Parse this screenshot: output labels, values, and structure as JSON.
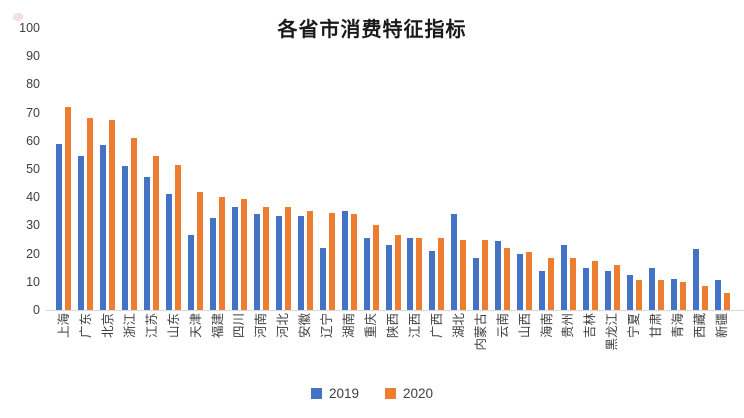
{
  "page": {
    "background": "#FFFFFF",
    "axis_line_color": "#D9D9D9",
    "label_color": "#3F3F3F"
  },
  "chart_data": {
    "type": "bar",
    "title": "各省市消费特征指标",
    "categories": [
      "上海",
      "广东",
      "北京",
      "浙江",
      "江苏",
      "山东",
      "天津",
      "福建",
      "四川",
      "河南",
      "河北",
      "安徽",
      "辽宁",
      "湖南",
      "重庆",
      "陕西",
      "江西",
      "广西",
      "湖北",
      "内蒙古",
      "云南",
      "山西",
      "海南",
      "贵州",
      "吉林",
      "黑龙江",
      "宁夏",
      "甘肃",
      "青海",
      "西藏",
      "新疆"
    ],
    "series": [
      {
        "name": "2019",
        "color": "#4472C4",
        "values": [
          59,
          54.5,
          58.5,
          51,
          47,
          41,
          26.5,
          32.5,
          36.5,
          34,
          33.5,
          33.5,
          22,
          35,
          25.5,
          23,
          25.5,
          21,
          34,
          18.5,
          24.5,
          20,
          14,
          23,
          15,
          14,
          12.5,
          15,
          11,
          21.5,
          10.5
        ]
      },
      {
        "name": "2020",
        "color": "#ED7D31",
        "values": [
          72,
          68,
          67.5,
          61,
          54.5,
          51.5,
          42,
          40,
          39.5,
          36.5,
          36.5,
          35,
          34.5,
          34,
          30,
          26.5,
          25.5,
          25.5,
          25,
          25,
          22,
          20.5,
          18.5,
          18.5,
          17.5,
          16,
          10.5,
          10.5,
          10,
          8.5,
          6
        ]
      }
    ],
    "xlabel": "",
    "ylabel": "",
    "ylim": [
      0,
      100
    ],
    "yticks": [
      0,
      10,
      20,
      30,
      40,
      50,
      60,
      70,
      80,
      90,
      100
    ],
    "grid": false,
    "legend_position": "bottom",
    "x_label_rotation": -90
  }
}
